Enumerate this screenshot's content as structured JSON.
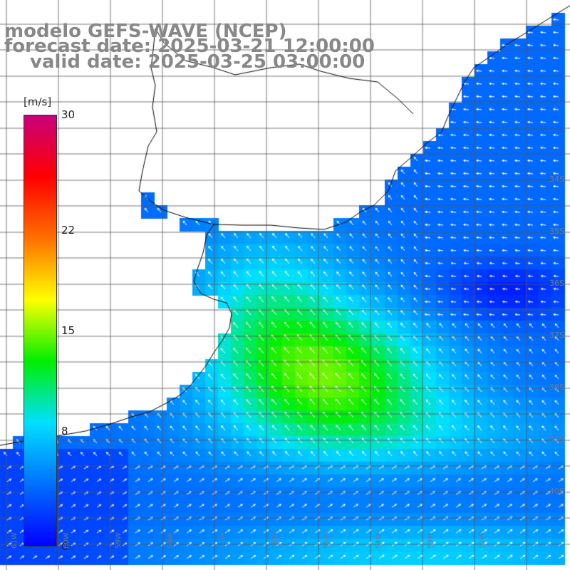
{
  "title": {
    "line1": "modelo GEFS-WAVE (NCEP)",
    "line2": "forecast date: 2025-03-21 12:00:00",
    "line3": "valid date: 2025-03-25 03:00:00"
  },
  "colorbar": {
    "unit": "[m/s]",
    "ticks": [
      {
        "value": 30,
        "label": "30"
      },
      {
        "value": 22,
        "label": "22"
      },
      {
        "value": 15,
        "label": "15"
      },
      {
        "value": 8,
        "label": "8"
      },
      {
        "value": 0,
        "label": "0"
      }
    ],
    "min": 0,
    "max": 30,
    "colors": [
      "#0000ff",
      "#0070ff",
      "#00e0ff",
      "#00ee00",
      "#ffff00",
      "#ff7000",
      "#ff0000",
      "#c8007a"
    ]
  },
  "map": {
    "lat_labels": [
      {
        "lat": -34,
        "label": "34S"
      },
      {
        "lat": -35,
        "label": "35S"
      },
      {
        "lat": -36,
        "label": "36S"
      },
      {
        "lat": -37,
        "label": "37S"
      },
      {
        "lat": -38,
        "label": "38S"
      },
      {
        "lat": -39,
        "label": "39S"
      },
      {
        "lat": -40,
        "label": "40S"
      }
    ],
    "lon_labels": [
      {
        "lon": -61,
        "label": "61W"
      },
      {
        "lon": -60,
        "label": "60W"
      },
      {
        "lon": -59,
        "label": "59W"
      },
      {
        "lon": -58,
        "label": "58W"
      },
      {
        "lon": -57,
        "label": "57W"
      },
      {
        "lon": -56,
        "label": "56W"
      },
      {
        "lon": -55,
        "label": "55W"
      },
      {
        "lon": -54,
        "label": "54W"
      },
      {
        "lon": -53,
        "label": "53W"
      },
      {
        "lon": -52,
        "label": "52W"
      }
    ],
    "land_color": "#ffffff",
    "grid_color": "#555555",
    "coast_color": "#000000",
    "arrow_color": "#ffffff"
  }
}
